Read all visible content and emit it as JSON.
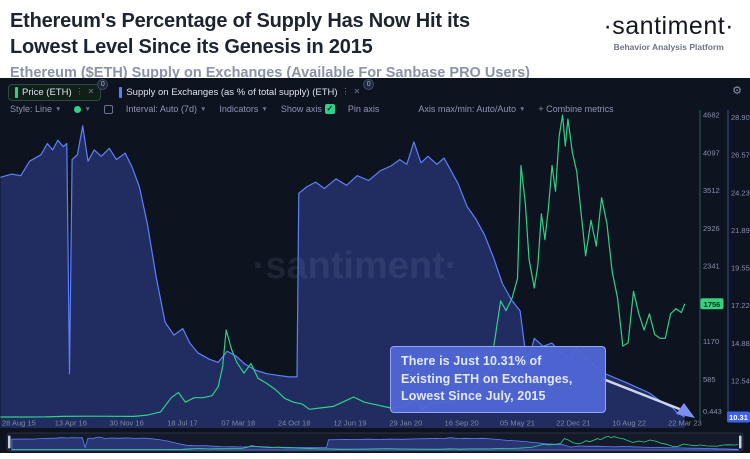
{
  "header": {
    "title_line1": "Ethereum's Percentage of Supply Has Now Hit its",
    "title_line2": "Lowest Level Since its Genesis in 2015",
    "subtitle": "Ethereum ($ETH) Supply on Exchanges (Available For Sanbase PRO Users)",
    "logo": "·santiment·",
    "logo_tagline": "Behavior Analysis Platform"
  },
  "toolbar": {
    "tabs": [
      {
        "label": "Price (ETH)",
        "badge": "0",
        "color": "#2fd08a"
      },
      {
        "label": "Supply on Exchanges (as % of total supply) (ETH)",
        "badge": "0",
        "color": "#5e7ffc"
      }
    ],
    "controls": {
      "style_label": "Style: Line",
      "interval_label": "Interval: Auto (7d)",
      "indicators_label": "Indicators",
      "show_axis_label": "Show axis",
      "show_axis_check": "✓",
      "pin_axis_label": "Pin axis",
      "axis_maxmin_label": "Axis max/min: Auto/Auto",
      "combine_label": "+ Combine metrics"
    }
  },
  "watermark": "·santiment·",
  "annotation": {
    "lines": [
      "There is Just 10.31% of",
      "Existing ETH on Exchanges,",
      "Lowest Since July, 2015"
    ]
  },
  "chart_data": {
    "type": "line",
    "title": "Ethereum ($ETH) Supply on Exchanges",
    "x_axis": {
      "tick_labels": [
        "28 Aug 15",
        "13 Apr 16",
        "30 Nov 16",
        "18 Jul 17",
        "07 Mar 18",
        "24 Oct 18",
        "12 Jun 19",
        "29 Jan 20",
        "16 Sep 20",
        "05 May 21",
        "22 Dec 21",
        "10 Aug 22",
        "22 Mar 23"
      ]
    },
    "y_axis_price": {
      "name": "Price (ETH)",
      "color": "#2fd08a",
      "side": "right",
      "ticks": [
        4682,
        4097,
        3512,
        2926,
        2341,
        1170,
        585
      ],
      "bottom_label": "0.443",
      "current_value": 1756,
      "current_badge": "1756",
      "range": [
        0.443,
        4682
      ]
    },
    "y_axis_supply": {
      "name": "Supply on Exchanges (as % of total supply) (ETH)",
      "color": "#5e7ffc",
      "side": "right",
      "ticks": [
        28.908,
        26.571,
        24.233,
        21.895,
        19.558,
        17.22,
        14.883,
        12.545
      ],
      "current_value": 10.31,
      "current_badge": "10.31",
      "range": [
        10.31,
        28.908
      ]
    },
    "series": [
      {
        "name": "Supply on Exchanges (as % of total supply) (ETH)",
        "axis": "supply",
        "style": "area",
        "color": "#5e7ffc",
        "fill": "rgba(80,105,245,0.30)",
        "points": [
          [
            2015.49,
            25.2
          ],
          [
            2015.62,
            25.4
          ],
          [
            2015.72,
            25.3
          ],
          [
            2015.82,
            26.2
          ],
          [
            2015.95,
            26.6
          ],
          [
            2016.02,
            27.3
          ],
          [
            2016.08,
            26.9
          ],
          [
            2016.14,
            27.5
          ],
          [
            2016.2,
            27.1
          ],
          [
            2016.24,
            27.3
          ],
          [
            2016.27,
            13.0
          ],
          [
            2016.3,
            26.3
          ],
          [
            2016.36,
            26.6
          ],
          [
            2016.42,
            28.4
          ],
          [
            2016.48,
            26.2
          ],
          [
            2016.55,
            26.9
          ],
          [
            2016.63,
            26.5
          ],
          [
            2016.72,
            27.0
          ],
          [
            2016.8,
            26.3
          ],
          [
            2016.9,
            26.7
          ],
          [
            2016.98,
            25.8
          ],
          [
            2017.06,
            24.6
          ],
          [
            2017.15,
            22.3
          ],
          [
            2017.25,
            19.0
          ],
          [
            2017.35,
            16.2
          ],
          [
            2017.45,
            15.4
          ],
          [
            2017.55,
            15.8
          ],
          [
            2017.63,
            14.9
          ],
          [
            2017.72,
            14.3
          ],
          [
            2017.85,
            13.9
          ],
          [
            2017.95,
            13.7
          ],
          [
            2018.05,
            14.4
          ],
          [
            2018.15,
            14.1
          ],
          [
            2018.25,
            13.6
          ],
          [
            2018.38,
            13.2
          ],
          [
            2018.5,
            13.0
          ],
          [
            2018.62,
            12.9
          ],
          [
            2018.75,
            12.8
          ],
          [
            2018.84,
            12.8
          ],
          [
            2018.86,
            24.2
          ],
          [
            2018.95,
            24.6
          ],
          [
            2019.05,
            24.9
          ],
          [
            2019.15,
            24.5
          ],
          [
            2019.28,
            25.1
          ],
          [
            2019.4,
            24.7
          ],
          [
            2019.52,
            25.3
          ],
          [
            2019.65,
            25.0
          ],
          [
            2019.78,
            25.6
          ],
          [
            2019.9,
            25.9
          ],
          [
            2020.0,
            26.3
          ],
          [
            2020.08,
            26.0
          ],
          [
            2020.16,
            27.4
          ],
          [
            2020.24,
            26.1
          ],
          [
            2020.32,
            26.5
          ],
          [
            2020.42,
            26.0
          ],
          [
            2020.5,
            26.4
          ],
          [
            2020.58,
            25.6
          ],
          [
            2020.66,
            24.8
          ],
          [
            2020.76,
            23.4
          ],
          [
            2020.86,
            22.6
          ],
          [
            2020.96,
            21.6
          ],
          [
            2021.06,
            20.2
          ],
          [
            2021.16,
            18.6
          ],
          [
            2021.26,
            17.6
          ],
          [
            2021.36,
            16.9
          ],
          [
            2021.44,
            13.5
          ],
          [
            2021.52,
            15.2
          ],
          [
            2021.62,
            14.7
          ],
          [
            2021.72,
            14.9
          ],
          [
            2021.82,
            14.3
          ],
          [
            2021.92,
            14.0
          ],
          [
            2022.0,
            14.6
          ],
          [
            2022.1,
            14.0
          ],
          [
            2022.2,
            13.5
          ],
          [
            2022.32,
            13.0
          ],
          [
            2022.45,
            12.7
          ],
          [
            2022.58,
            12.4
          ],
          [
            2022.7,
            12.1
          ],
          [
            2022.82,
            11.8
          ],
          [
            2022.92,
            11.4
          ],
          [
            2023.0,
            11.1
          ],
          [
            2023.08,
            10.9
          ],
          [
            2023.14,
            10.55
          ],
          [
            2023.22,
            10.31
          ]
        ]
      },
      {
        "name": "Price (ETH)",
        "axis": "price",
        "style": "line",
        "color": "#2fd08a",
        "points": [
          [
            2015.49,
            1
          ],
          [
            2015.7,
            1
          ],
          [
            2016.0,
            2
          ],
          [
            2016.2,
            10
          ],
          [
            2016.5,
            13
          ],
          [
            2016.8,
            11
          ],
          [
            2017.0,
            9
          ],
          [
            2017.15,
            30
          ],
          [
            2017.3,
            80
          ],
          [
            2017.42,
            300
          ],
          [
            2017.5,
            380
          ],
          [
            2017.58,
            230
          ],
          [
            2017.68,
            300
          ],
          [
            2017.78,
            300
          ],
          [
            2017.88,
            330
          ],
          [
            2017.95,
            470
          ],
          [
            2018.0,
            780
          ],
          [
            2018.04,
            1350
          ],
          [
            2018.1,
            1050
          ],
          [
            2018.16,
            850
          ],
          [
            2018.24,
            680
          ],
          [
            2018.32,
            830
          ],
          [
            2018.4,
            600
          ],
          [
            2018.5,
            520
          ],
          [
            2018.6,
            420
          ],
          [
            2018.7,
            290
          ],
          [
            2018.8,
            230
          ],
          [
            2018.9,
            200
          ],
          [
            2018.98,
            120
          ],
          [
            2019.1,
            140
          ],
          [
            2019.25,
            165
          ],
          [
            2019.4,
            260
          ],
          [
            2019.48,
            310
          ],
          [
            2019.6,
            230
          ],
          [
            2019.75,
            185
          ],
          [
            2019.9,
            140
          ],
          [
            2020.05,
            160
          ],
          [
            2020.15,
            260
          ],
          [
            2020.22,
            230
          ],
          [
            2020.25,
            115
          ],
          [
            2020.35,
            200
          ],
          [
            2020.5,
            230
          ],
          [
            2020.6,
            240
          ],
          [
            2020.68,
            400
          ],
          [
            2020.78,
            370
          ],
          [
            2020.88,
            450
          ],
          [
            2020.95,
            600
          ],
          [
            2021.02,
            750
          ],
          [
            2021.08,
            1250
          ],
          [
            2021.14,
            1800
          ],
          [
            2021.2,
            1650
          ],
          [
            2021.27,
            1850
          ],
          [
            2021.33,
            2150
          ],
          [
            2021.37,
            3900
          ],
          [
            2021.42,
            3300
          ],
          [
            2021.46,
            2450
          ],
          [
            2021.52,
            2000
          ],
          [
            2021.56,
            2350
          ],
          [
            2021.6,
            3150
          ],
          [
            2021.64,
            2750
          ],
          [
            2021.68,
            3250
          ],
          [
            2021.72,
            3900
          ],
          [
            2021.76,
            3500
          ],
          [
            2021.8,
            4350
          ],
          [
            2021.84,
            4682
          ],
          [
            2021.87,
            4200
          ],
          [
            2021.9,
            4620
          ],
          [
            2021.95,
            4100
          ],
          [
            2022.0,
            3800
          ],
          [
            2022.05,
            3150
          ],
          [
            2022.1,
            2500
          ],
          [
            2022.16,
            3050
          ],
          [
            2022.22,
            2650
          ],
          [
            2022.28,
            3400
          ],
          [
            2022.34,
            3000
          ],
          [
            2022.4,
            2250
          ],
          [
            2022.46,
            1850
          ],
          [
            2022.52,
            1100
          ],
          [
            2022.58,
            1150
          ],
          [
            2022.64,
            1950
          ],
          [
            2022.7,
            1600
          ],
          [
            2022.76,
            1350
          ],
          [
            2022.82,
            1600
          ],
          [
            2022.88,
            1280
          ],
          [
            2022.94,
            1220
          ],
          [
            2023.0,
            1220
          ],
          [
            2023.06,
            1600
          ],
          [
            2023.12,
            1680
          ],
          [
            2023.18,
            1620
          ],
          [
            2023.22,
            1756
          ]
        ]
      }
    ],
    "x_domain_years": [
      2015.46,
      2023.25
    ],
    "legend_position": "top-tabs",
    "grid": false
  }
}
